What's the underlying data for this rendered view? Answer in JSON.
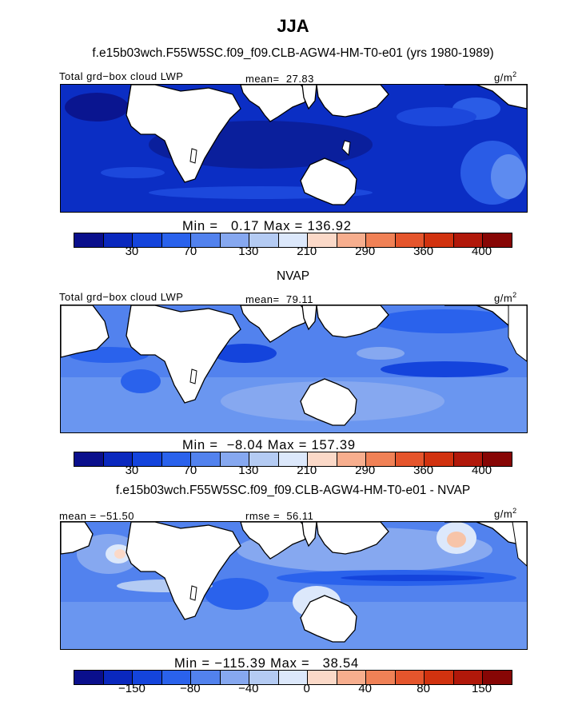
{
  "title": "JJA",
  "palette": [
    "#0a0f8c",
    "#0a28be",
    "#1444dc",
    "#2a62ec",
    "#5282ee",
    "#86a8f0",
    "#b4cbf3",
    "#dce8fb",
    "#fbd9c8",
    "#f7ae8e",
    "#f08156",
    "#e5552c",
    "#d1320f",
    "#b1180a",
    "#870605"
  ],
  "units_text": "g/m",
  "units_sup": "2",
  "chart_data": [
    {
      "type": "heatmap",
      "title": "f.e15b03wch.F55W5SC.f09_f09.CLB-AGW4-HM-T0-e01 (yrs 1980-1989)",
      "field": "Total grd−box cloud LWP",
      "mean_label": "mean=",
      "mean": "27.83",
      "units": "g/m2",
      "min_label": "Min =",
      "min": "0.17",
      "max_label": "Max =",
      "max": "136.92",
      "colorbar_ticks": [
        "30",
        "70",
        "130",
        "210",
        "290",
        "360",
        "400"
      ]
    },
    {
      "type": "heatmap",
      "title": "NVAP",
      "field": "Total grd−box cloud LWP",
      "mean_label": "mean=",
      "mean": "79.11",
      "units": "g/m2",
      "min_label": "Min =",
      "min": "−8.04",
      "max_label": "Max =",
      "max": "157.39",
      "colorbar_ticks": [
        "30",
        "70",
        "130",
        "210",
        "290",
        "360",
        "400"
      ]
    },
    {
      "type": "heatmap",
      "title": "f.e15b03wch.F55W5SC.f09_f09.CLB-AGW4-HM-T0-e01 - NVAP",
      "mean_label": "mean =",
      "mean": "−51.50",
      "rmse_label": "rmse =",
      "rmse": "56.11",
      "units": "g/m2",
      "min_label": "Min =",
      "min": "−115.39",
      "max_label": "Max =",
      "max": "38.54",
      "colorbar_ticks": [
        "−150",
        "−80",
        "−40",
        "0",
        "40",
        "80",
        "150"
      ]
    }
  ]
}
